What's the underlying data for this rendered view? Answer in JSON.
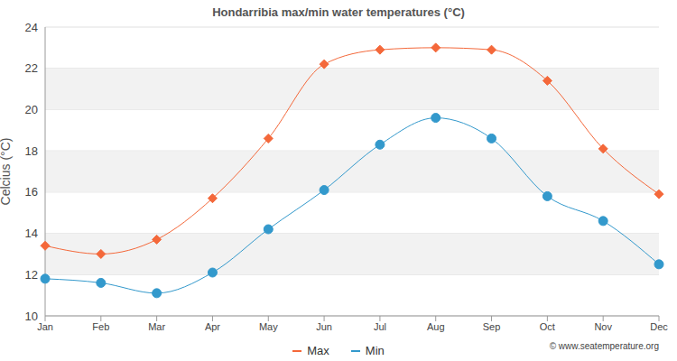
{
  "chart_data": {
    "type": "line",
    "title": "Hondarribia max/min water temperatures (°C)",
    "y_label": "Celcius (°C)",
    "annotations": [
      "© www.seatemperature.org"
    ],
    "categories": [
      "Jan",
      "Feb",
      "Mar",
      "Apr",
      "May",
      "Jun",
      "Jul",
      "Aug",
      "Sep",
      "Oct",
      "Nov",
      "Dec"
    ],
    "series": [
      {
        "name": "Max",
        "color": "#f4683a",
        "marker": "diamond",
        "values": [
          13.4,
          13.0,
          13.7,
          15.7,
          18.6,
          22.2,
          22.9,
          23.0,
          22.9,
          21.4,
          18.1,
          15.9
        ]
      },
      {
        "name": "Min",
        "color": "#3399cc",
        "marker": "circle",
        "values": [
          11.8,
          11.6,
          11.1,
          12.1,
          14.2,
          16.1,
          18.3,
          19.6,
          18.6,
          15.8,
          14.6,
          12.5
        ]
      }
    ],
    "ylim": [
      10,
      24
    ],
    "yticks": [
      10,
      12,
      14,
      16,
      18,
      20,
      22,
      24
    ],
    "grid": true,
    "legend": "bottom"
  }
}
